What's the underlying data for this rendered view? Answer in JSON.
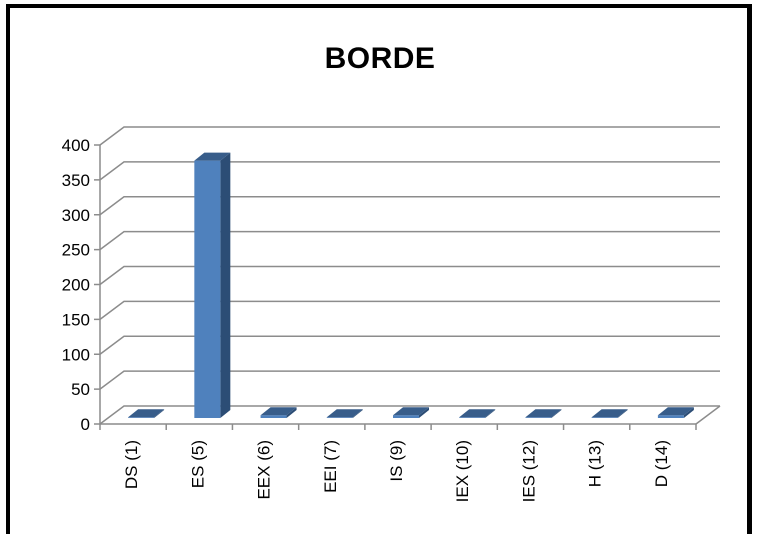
{
  "chart_data": {
    "type": "bar",
    "title": "BORDE",
    "categories": [
      "DS (1)",
      "ES (5)",
      "EEX (6)",
      "EEI (7)",
      "IS (9)",
      "IEX (10)",
      "IES (12)",
      "H (13)",
      "D (14)"
    ],
    "values": [
      1,
      369,
      4,
      1,
      4,
      1,
      1,
      1,
      4
    ],
    "ylim": [
      0,
      400
    ],
    "yticks": [
      0,
      50,
      100,
      150,
      200,
      250,
      300,
      350,
      400
    ],
    "grid": true,
    "colors": {
      "bar_front": "#4f81bd",
      "bar_side": "#2c4d75",
      "bar_top": "#385d8a",
      "grid": "#8c8c8c"
    }
  }
}
